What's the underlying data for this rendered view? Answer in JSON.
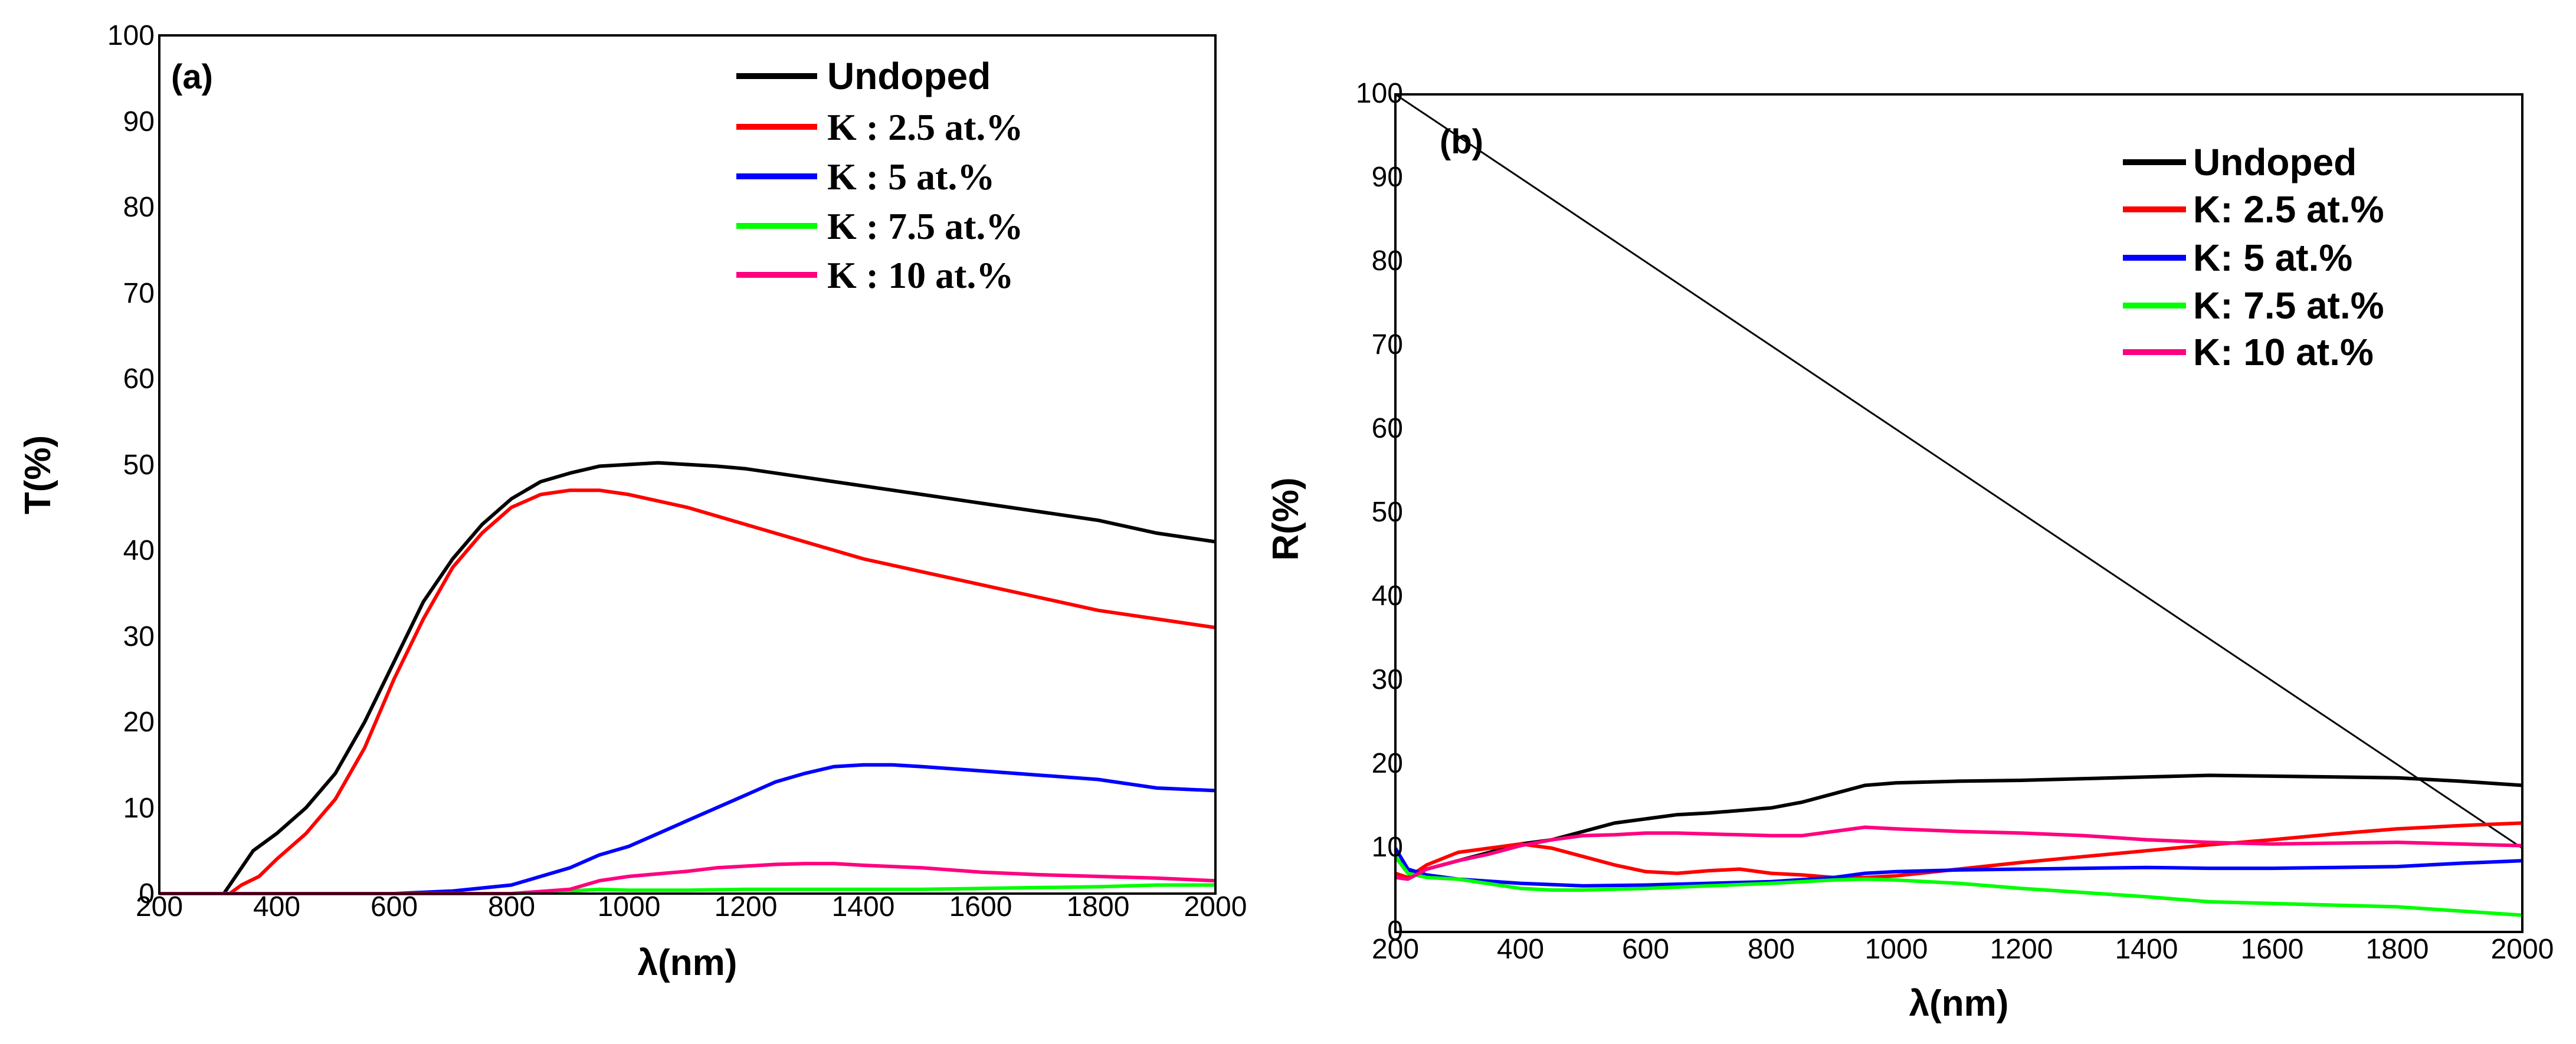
{
  "chart_data": [
    {
      "type": "line",
      "panel_label": "(a)",
      "xlabel": "λ(nm)",
      "ylabel": "T(%)",
      "xlim": [
        200,
        2000
      ],
      "ylim": [
        0,
        100
      ],
      "x_ticks": [
        200,
        400,
        600,
        800,
        1000,
        1200,
        1400,
        1600,
        1800,
        2000
      ],
      "x_tick_labels": [
        "200",
        "400",
        "600",
        "800",
        "1000",
        "1200",
        "1400",
        "1600",
        "1800",
        "2000"
      ],
      "y_ticks": [
        0,
        10,
        20,
        30,
        40,
        50,
        60,
        70,
        80,
        90,
        100
      ],
      "y_tick_labels": [
        "0",
        "10",
        "20",
        "30",
        "40",
        "50",
        "60",
        "70",
        "80",
        "90",
        "100"
      ],
      "legend_position": "top-right",
      "series": [
        {
          "name": "Undoped",
          "color": "#000000",
          "x": [
            200,
            310,
            330,
            360,
            400,
            450,
            500,
            550,
            600,
            650,
            700,
            750,
            800,
            850,
            900,
            950,
            1000,
            1050,
            1100,
            1150,
            1200,
            1300,
            1400,
            1500,
            1600,
            1700,
            1800,
            1900,
            2000
          ],
          "y": [
            0,
            0,
            2,
            5,
            7,
            10,
            14,
            20,
            27,
            34,
            39,
            43,
            46,
            48,
            49,
            49.8,
            50,
            50.2,
            50,
            49.8,
            49.5,
            48.5,
            47.5,
            46.5,
            45.5,
            44.5,
            43.5,
            42,
            41
          ]
        },
        {
          "name": "K : 2.5 at.%",
          "color": "#ff0000",
          "x": [
            200,
            320,
            340,
            370,
            400,
            450,
            500,
            550,
            600,
            650,
            700,
            750,
            800,
            850,
            900,
            950,
            1000,
            1100,
            1200,
            1300,
            1400,
            1500,
            1600,
            1700,
            1800,
            1900,
            2000
          ],
          "y": [
            0,
            0,
            1,
            2,
            4,
            7,
            11,
            17,
            25,
            32,
            38,
            42,
            45,
            46.5,
            47,
            47,
            46.5,
            45,
            43,
            41,
            39,
            37.5,
            36,
            34.5,
            33,
            32,
            31
          ]
        },
        {
          "name": "K : 5 at.%",
          "color": "#0000ff",
          "x": [
            200,
            600,
            700,
            800,
            850,
            900,
            950,
            1000,
            1050,
            1100,
            1150,
            1200,
            1250,
            1300,
            1350,
            1400,
            1450,
            1500,
            1600,
            1700,
            1800,
            1900,
            2000
          ],
          "y": [
            0,
            0,
            0.3,
            1,
            2,
            3,
            4.5,
            5.5,
            7,
            8.5,
            10,
            11.5,
            13,
            14,
            14.8,
            15,
            15,
            14.8,
            14.3,
            13.8,
            13.3,
            12.3,
            12
          ]
        },
        {
          "name": "K : 7.5 at.%",
          "color": "#00ff00",
          "x": [
            200,
            800,
            900,
            950,
            1000,
            1100,
            1200,
            1300,
            1400,
            1500,
            1600,
            1700,
            1800,
            1900,
            2000
          ],
          "y": [
            0,
            0,
            0.3,
            0.5,
            0.4,
            0.4,
            0.5,
            0.5,
            0.5,
            0.5,
            0.6,
            0.7,
            0.8,
            1,
            1
          ]
        },
        {
          "name": "K : 10 at.%",
          "color": "#ff0080",
          "x": [
            200,
            800,
            900,
            950,
            1000,
            1050,
            1100,
            1150,
            1200,
            1250,
            1300,
            1350,
            1400,
            1500,
            1600,
            1700,
            1800,
            1900,
            2000
          ],
          "y": [
            0,
            0,
            0.5,
            1.5,
            2,
            2.3,
            2.6,
            3,
            3.2,
            3.4,
            3.5,
            3.5,
            3.3,
            3,
            2.5,
            2.2,
            2,
            1.8,
            1.5
          ]
        }
      ],
      "annotation_lines": []
    },
    {
      "type": "line",
      "panel_label": "(b)",
      "xlabel": "λ(nm)",
      "ylabel": "R(%)",
      "xlim": [
        200,
        2000
      ],
      "ylim": [
        0,
        100
      ],
      "x_ticks": [
        200,
        400,
        600,
        800,
        1000,
        1200,
        1400,
        1600,
        1800,
        2000
      ],
      "x_tick_labels": [
        "200",
        "400",
        "600",
        "800",
        "1000",
        "1200",
        "1400",
        "1600",
        "1800",
        "2000"
      ],
      "y_ticks": [
        0,
        10,
        20,
        30,
        40,
        50,
        60,
        70,
        80,
        90,
        100
      ],
      "y_tick_labels": [
        "0",
        "10",
        "20",
        "30",
        "40",
        "50",
        "60",
        "70",
        "80",
        "90",
        "100"
      ],
      "legend_position": "top-right",
      "series": [
        {
          "name": "Undoped",
          "color": "#000000",
          "x": [
            200,
            220,
            250,
            300,
            350,
            400,
            450,
            500,
            550,
            600,
            650,
            700,
            750,
            800,
            850,
            900,
            950,
            1000,
            1100,
            1200,
            1300,
            1400,
            1500,
            1600,
            1700,
            1800,
            1900,
            2000
          ],
          "y": [
            9,
            7,
            7.5,
            8.5,
            9.5,
            10.5,
            11,
            12,
            13,
            13.5,
            14,
            14.2,
            14.5,
            14.8,
            15.5,
            16.5,
            17.5,
            17.8,
            18,
            18.1,
            18.3,
            18.5,
            18.7,
            18.6,
            18.5,
            18.4,
            18,
            17.5
          ]
        },
        {
          "name": "K: 2.5 at.%",
          "color": "#ff0000",
          "x": [
            200,
            220,
            250,
            300,
            350,
            400,
            450,
            500,
            550,
            600,
            650,
            700,
            750,
            800,
            850,
            900,
            950,
            1000,
            1100,
            1200,
            1300,
            1400,
            1500,
            1600,
            1700,
            1800,
            1900,
            2000
          ],
          "y": [
            7,
            6.5,
            8,
            9.5,
            10,
            10.5,
            10,
            9,
            8,
            7.2,
            7,
            7.3,
            7.5,
            7,
            6.8,
            6.5,
            6.5,
            6.7,
            7.5,
            8.3,
            9,
            9.7,
            10.4,
            11,
            11.7,
            12.3,
            12.7,
            13
          ]
        },
        {
          "name": "K: 5 at.%",
          "color": "#0000ff",
          "x": [
            200,
            220,
            250,
            300,
            400,
            500,
            600,
            700,
            800,
            900,
            950,
            1000,
            1100,
            1200,
            1300,
            1400,
            1500,
            1600,
            1700,
            1800,
            1900,
            2000
          ],
          "y": [
            10,
            7.5,
            6.8,
            6.3,
            5.8,
            5.5,
            5.6,
            5.8,
            6,
            6.5,
            7,
            7.2,
            7.4,
            7.5,
            7.6,
            7.7,
            7.6,
            7.6,
            7.7,
            7.8,
            8.2,
            8.5
          ]
        },
        {
          "name": "K: 7.5 at.%",
          "color": "#00ff00",
          "x": [
            200,
            220,
            250,
            300,
            400,
            450,
            500,
            600,
            700,
            800,
            900,
            950,
            1000,
            1100,
            1200,
            1300,
            1400,
            1500,
            1600,
            1700,
            1800,
            1900,
            2000
          ],
          "y": [
            9,
            7,
            6.5,
            6.3,
            5.2,
            5,
            5,
            5.2,
            5.5,
            5.8,
            6.2,
            6.3,
            6.2,
            5.8,
            5.2,
            4.7,
            4.2,
            3.6,
            3.4,
            3.2,
            3,
            2.5,
            2
          ]
        },
        {
          "name": "K: 10 at.%",
          "color": "#ff0080",
          "x": [
            200,
            220,
            250,
            300,
            350,
            400,
            450,
            500,
            550,
            600,
            650,
            700,
            750,
            800,
            850,
            900,
            950,
            1000,
            1100,
            1200,
            1300,
            1400,
            1500,
            1600,
            1700,
            1800,
            1900,
            2000
          ],
          "y": [
            6.5,
            6.3,
            7.5,
            8.5,
            9.3,
            10.3,
            11,
            11.5,
            11.6,
            11.8,
            11.8,
            11.7,
            11.6,
            11.5,
            11.5,
            12,
            12.5,
            12.3,
            12,
            11.8,
            11.5,
            11,
            10.7,
            10.5,
            10.6,
            10.7,
            10.5,
            10.3
          ]
        }
      ],
      "annotation_lines": [
        {
          "name": "diagonal-line",
          "color": "#000000",
          "x": [
            200,
            2000
          ],
          "y": [
            100,
            10
          ]
        }
      ]
    }
  ]
}
